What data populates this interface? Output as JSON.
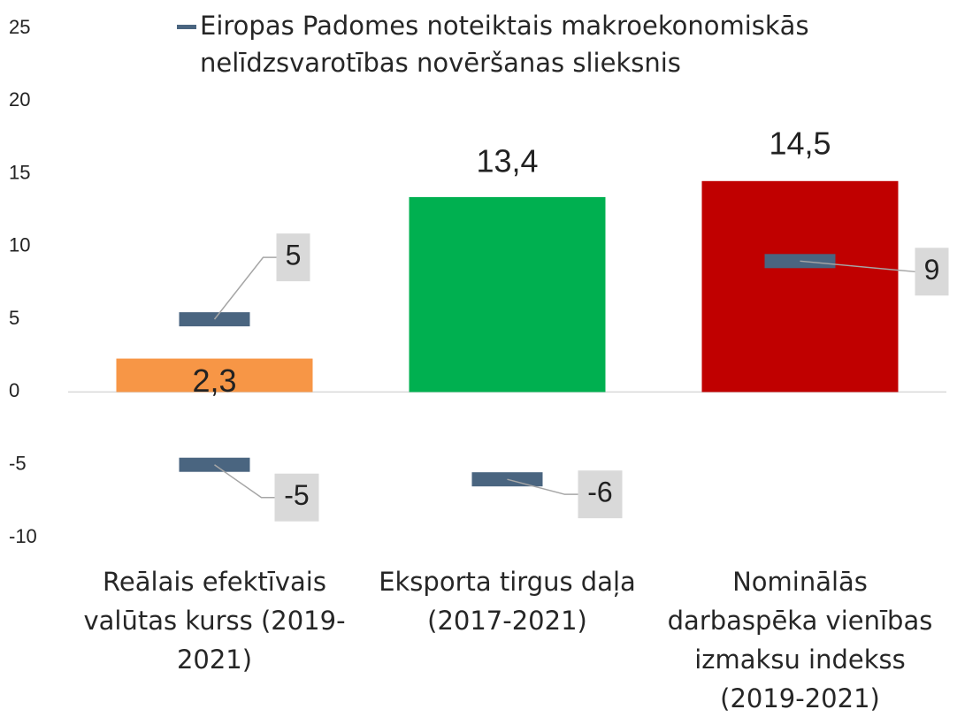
{
  "chart_data": {
    "type": "bar",
    "categories": [
      "Reālais efektīvais valūtas kurss (2019-2021)",
      "Eksporta tirgus daļa (2017-2021)",
      "Nominālās darbaspēka vienības izmaksu indekss (2019-2021)"
    ],
    "values": [
      2.3,
      13.4,
      14.5
    ],
    "value_labels": [
      "2,3",
      "13,4",
      "14,5"
    ],
    "colors": [
      "#f79646",
      "#00b050",
      "#c00000"
    ],
    "series": [
      {
        "name": "Eiropas Padomes noteiktais makroekonomiskās nelīdzsvarotības novēršanas slieksnis",
        "color": "#4a6580",
        "upper": [
          5,
          null,
          9
        ],
        "lower": [
          -5,
          -6,
          null
        ]
      }
    ],
    "ylim": [
      -10,
      25
    ],
    "yticks": [
      -10,
      -5,
      0,
      5,
      10,
      15,
      20,
      25
    ],
    "legend": "top"
  }
}
